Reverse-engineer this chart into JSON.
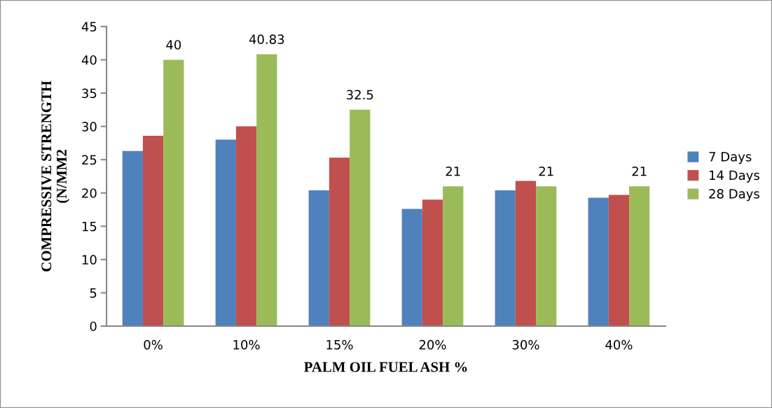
{
  "chart_data": {
    "type": "bar",
    "xlabel": "PALM OIL FUEL ASH %",
    "ylabel": "COMPRESSIVE STRENGTH\n(N/MM2",
    "categories": [
      "0%",
      "10%",
      "15%",
      "20%",
      "30%",
      "40%"
    ],
    "series": [
      {
        "name": "7 Days",
        "color": "#4f81bd",
        "values": [
          26.3,
          28.0,
          20.4,
          17.6,
          20.4,
          19.3
        ]
      },
      {
        "name": "14 Days",
        "color": "#c0504d",
        "values": [
          28.6,
          30.0,
          25.3,
          19.0,
          21.8,
          19.7
        ]
      },
      {
        "name": "28 Days",
        "color": "#9bbb59",
        "values": [
          40,
          40.83,
          32.5,
          21,
          21,
          21
        ],
        "value_labels": [
          "40",
          "40.83",
          "32.5",
          "21",
          "21",
          "21"
        ]
      }
    ],
    "ylim": [
      0,
      45
    ],
    "yticks": [
      0,
      5,
      10,
      15,
      20,
      25,
      30,
      35,
      40,
      45
    ],
    "grid": false,
    "legend": "right"
  }
}
